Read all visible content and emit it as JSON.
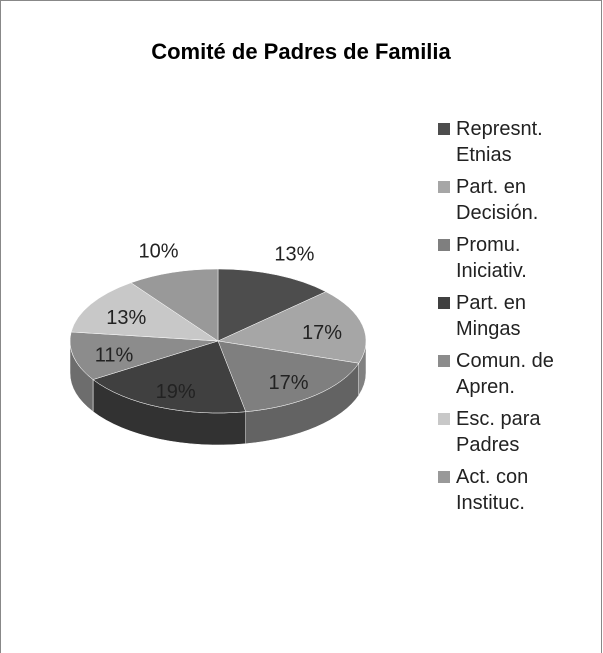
{
  "chart_data": {
    "type": "pie",
    "title": "Comité de Padres de Familia",
    "categories": [
      "Represnt. Etnias",
      "Part. en Decisión.",
      "Promu. Iniciativ.",
      "Part. en Mingas",
      "Comun. de Apren.",
      "Esc. para Padres",
      "Act. con Instituc."
    ],
    "values": [
      13,
      17,
      17,
      19,
      11,
      13,
      10
    ],
    "value_labels": [
      "13%",
      "17%",
      "17%",
      "19%",
      "11%",
      "13%",
      "10%"
    ],
    "colors": [
      "#4d4d4d",
      "#a6a6a6",
      "#7f7f7f",
      "#404040",
      "#8c8c8c",
      "#c8c8c8",
      "#999999"
    ],
    "three_d": true
  }
}
